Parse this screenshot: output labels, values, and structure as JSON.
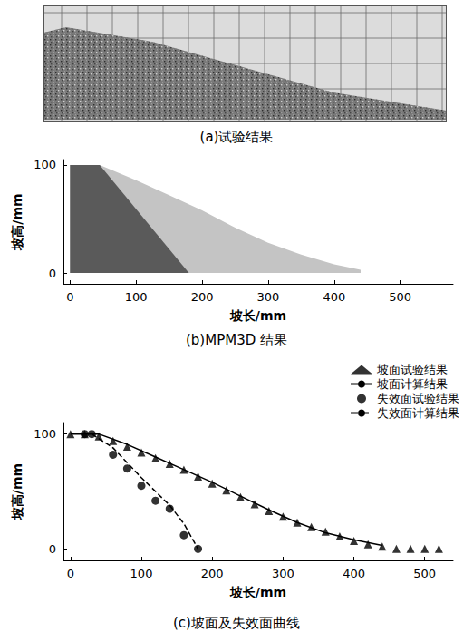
{
  "figure_a": {
    "caption": "(a)试验结果"
  },
  "chart_data": [
    {
      "type": "area",
      "caption": "(b)MPM3D 结果",
      "x_label": "坡长/mm",
      "y_label": "坡高/mm",
      "xlim": [
        -10,
        580
      ],
      "ylim": [
        -10,
        105
      ],
      "xticks": [
        0,
        100,
        200,
        300,
        400,
        500
      ],
      "yticks": [
        0,
        100
      ],
      "grid": false,
      "series": [
        {
          "color": "#c4c4c4",
          "x": [
            0,
            45,
            100,
            150,
            200,
            250,
            300,
            350,
            400,
            440
          ],
          "values": [
            100,
            100,
            86,
            72,
            58,
            42,
            28,
            17,
            8,
            3
          ]
        },
        {
          "color": "#5a5a5a",
          "x": [
            0,
            45,
            180
          ],
          "values": [
            100,
            100,
            0
          ]
        }
      ]
    },
    {
      "type": "line",
      "caption": "(c)坡面及失效面曲线",
      "x_label": "坡长/mm",
      "y_label": "坡高/mm",
      "xlim": [
        -10,
        540
      ],
      "ylim": [
        -10,
        110
      ],
      "xticks": [
        0,
        100,
        200,
        300,
        400,
        500
      ],
      "yticks": [
        0,
        100
      ],
      "grid": false,
      "legend": "top-right",
      "series": [
        {
          "name": "坡面试验结果",
          "type": "scatter",
          "marker": "triangle",
          "color": "#000000",
          "x": [
            0,
            20,
            40,
            60,
            80,
            100,
            120,
            140,
            160,
            180,
            200,
            220,
            240,
            260,
            280,
            300,
            320,
            340,
            360,
            380,
            400,
            420,
            440,
            460,
            480,
            500,
            520
          ],
          "values": [
            100,
            100,
            98,
            94,
            89,
            84,
            79,
            74,
            69,
            63,
            57,
            51,
            45,
            39,
            33,
            28,
            23,
            19,
            15,
            11,
            7,
            4,
            2,
            0,
            0,
            0,
            0
          ]
        },
        {
          "name": "坡面计算结果",
          "type": "line",
          "line_style": "solid",
          "color": "#000000",
          "x": [
            0,
            40,
            80,
            120,
            160,
            200,
            240,
            280,
            320,
            360,
            400,
            440
          ],
          "values": [
            100,
            100,
            91,
            80,
            69,
            58,
            46,
            34,
            23,
            14,
            8,
            3
          ]
        },
        {
          "name": "失效面试验结果",
          "type": "scatter",
          "marker": "circle",
          "color": "#000000",
          "x": [
            20,
            30,
            60,
            80,
            100,
            120,
            140,
            160,
            180
          ],
          "values": [
            100,
            100,
            82,
            70,
            55,
            42,
            35,
            12,
            0
          ]
        },
        {
          "name": "失效面计算结果",
          "type": "line",
          "line_style": "dashed",
          "color": "#000000",
          "x": [
            30,
            60,
            100,
            140,
            160,
            180
          ],
          "values": [
            100,
            88,
            62,
            38,
            22,
            0
          ]
        }
      ]
    }
  ]
}
